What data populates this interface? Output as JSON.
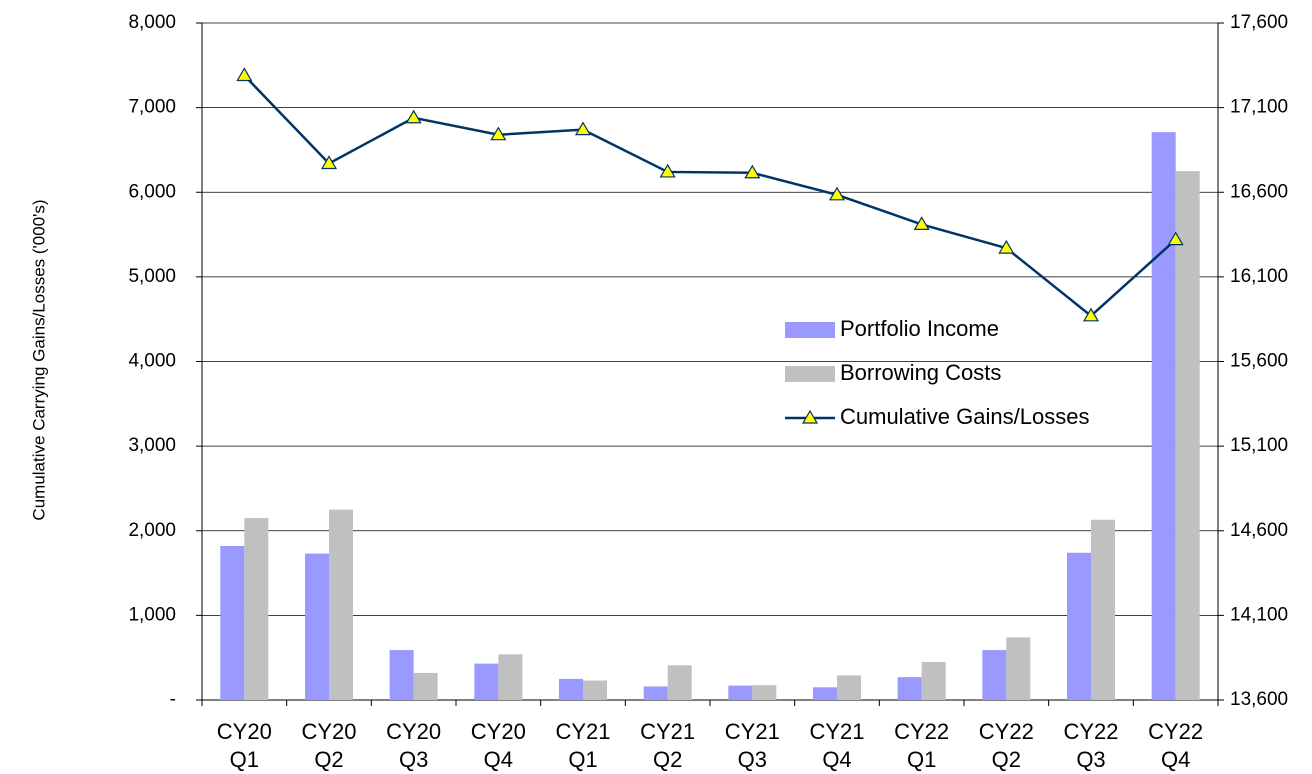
{
  "chart_data": {
    "type": "bar-line",
    "y_label": "Cumulative Carrying Gains/Losses ('000's)",
    "categories": [
      "CY20 Q1",
      "CY20 Q2",
      "CY20 Q3",
      "CY20 Q4",
      "CY21 Q1",
      "CY21 Q2",
      "CY21 Q3",
      "CY21 Q4",
      "CY22 Q1",
      "CY22 Q2",
      "CY22 Q3",
      "CY22 Q4"
    ],
    "series": [
      {
        "name": "Portfolio Income",
        "type": "bar",
        "color": "#9999ff",
        "values": [
          1820,
          1730,
          590,
          430,
          250,
          160,
          170,
          150,
          270,
          590,
          1740,
          6710
        ]
      },
      {
        "name": "Borrowing Costs",
        "type": "bar",
        "color": "#c0c0c0",
        "values": [
          2150,
          2250,
          320,
          540,
          230,
          410,
          175,
          290,
          450,
          740,
          2130,
          6250
        ]
      },
      {
        "name": "Cumulative Gains/Losses",
        "type": "line",
        "axis": "y2",
        "color": "#003366",
        "marker_color": "#ffff00",
        "values": [
          17290,
          16770,
          17040,
          16940,
          16970,
          16720,
          16715,
          16585,
          16410,
          16270,
          15870,
          16320
        ]
      }
    ],
    "ylim": [
      0,
      8000
    ],
    "yticks": [
      {
        "value": 0,
        "label": "-"
      },
      {
        "value": 1000,
        "label": "1,000"
      },
      {
        "value": 2000,
        "label": "2,000"
      },
      {
        "value": 3000,
        "label": "3,000"
      },
      {
        "value": 4000,
        "label": "4,000"
      },
      {
        "value": 5000,
        "label": "5,000"
      },
      {
        "value": 6000,
        "label": "6,000"
      },
      {
        "value": 7000,
        "label": "7,000"
      },
      {
        "value": 8000,
        "label": "8,000"
      }
    ],
    "y2lim": [
      13600,
      17600
    ],
    "y2ticks": [
      {
        "value": 13600,
        "label": "13,600"
      },
      {
        "value": 14100,
        "label": "14,100"
      },
      {
        "value": 14600,
        "label": "14,600"
      },
      {
        "value": 15100,
        "label": "15,100"
      },
      {
        "value": 15600,
        "label": "15,600"
      },
      {
        "value": 16100,
        "label": "16,100"
      },
      {
        "value": 16600,
        "label": "16,600"
      },
      {
        "value": 17100,
        "label": "17,100"
      },
      {
        "value": 17600,
        "label": "17,600"
      }
    ],
    "grid": true,
    "legend_position": "center-right"
  }
}
